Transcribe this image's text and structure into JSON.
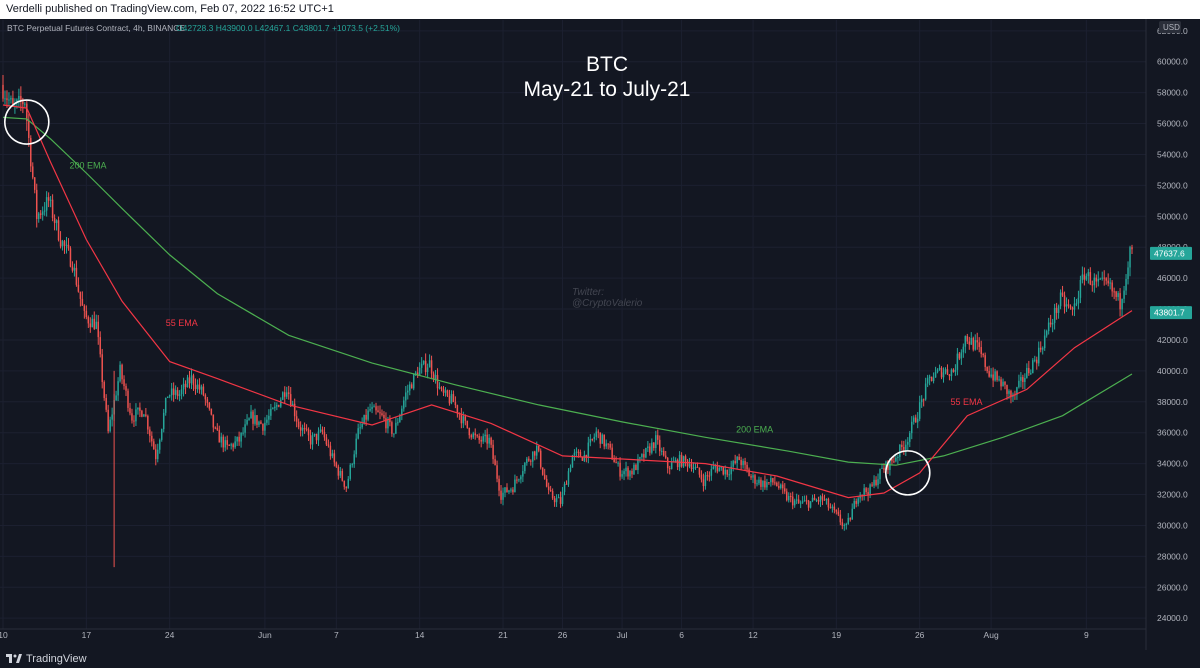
{
  "publish_info": "Verdelli published on TradingView.com, Feb 07, 2022 16:52 UTC+1",
  "brand": "TradingView",
  "colors": {
    "background": "#131722",
    "up": "#26a69a",
    "down": "#ef5350",
    "ema55": "#f23645",
    "ema200": "#4caf50",
    "text": "#b2b5be"
  },
  "chart_data": {
    "type": "candlestick",
    "symbol_header": "BTC Perpetual Futures Contract, 4h, BINANCE",
    "ohlc_readout": {
      "open": "O42728.3",
      "high": "H43900.0",
      "low": "L42467.1",
      "close": "C43801.7",
      "change": "+1073.5 (+2.51%)"
    },
    "title_lines": [
      "BTC",
      "May-21 to July-21"
    ],
    "watermark_lines": [
      "Twitter:",
      "@CryptoValerio"
    ],
    "currency": "USD",
    "y_ticks": [
      24000,
      26000,
      28000,
      30000,
      32000,
      34000,
      36000,
      38000,
      40000,
      42000,
      44000,
      46000,
      48000,
      50000,
      52000,
      54000,
      56000,
      58000,
      60000,
      62000
    ],
    "y_tick_labels": [
      "24000.0",
      "26000.0",
      "28000.0",
      "30000.0",
      "32000.0",
      "34000.0",
      "36000.0",
      "38000.0",
      "40000.0",
      "42000.0",
      "44000.0",
      "46000.0",
      "48000.0",
      "50000.0",
      "52000.0",
      "54000.0",
      "56000.0",
      "58000.0",
      "60000.0",
      "62000.0"
    ],
    "ylim": [
      23300,
      62700
    ],
    "x_range": [
      "2021-05-10T00:00",
      "2021-08-12T20:00"
    ],
    "x_ticks": [
      {
        "label": "10",
        "date": "2021-05-10"
      },
      {
        "label": "17",
        "date": "2021-05-17"
      },
      {
        "label": "24",
        "date": "2021-05-24"
      },
      {
        "label": "Jun",
        "date": "2021-06-01"
      },
      {
        "label": "7",
        "date": "2021-06-07"
      },
      {
        "label": "14",
        "date": "2021-06-14"
      },
      {
        "label": "21",
        "date": "2021-06-21"
      },
      {
        "label": "26",
        "date": "2021-06-26"
      },
      {
        "label": "Jul",
        "date": "2021-07-01"
      },
      {
        "label": "6",
        "date": "2021-07-06"
      },
      {
        "label": "12",
        "date": "2021-07-12"
      },
      {
        "label": "19",
        "date": "2021-07-19"
      },
      {
        "label": "26",
        "date": "2021-07-26"
      },
      {
        "label": "Aug",
        "date": "2021-08-01"
      },
      {
        "label": "9",
        "date": "2021-08-09"
      }
    ],
    "price_keypoints": [
      [
        "2021-05-10",
        58500
      ],
      [
        "2021-05-11",
        57000
      ],
      [
        "2021-05-12",
        57500
      ],
      [
        "2021-05-13",
        50000
      ],
      [
        "2021-05-14",
        51000
      ],
      [
        "2021-05-15",
        48500
      ],
      [
        "2021-05-16",
        47000
      ],
      [
        "2021-05-17",
        43500
      ],
      [
        "2021-05-18",
        43000
      ],
      [
        "2021-05-19",
        36000
      ],
      [
        "2021-05-20",
        40000
      ],
      [
        "2021-05-21",
        37000
      ],
      [
        "2021-05-22",
        37500
      ],
      [
        "2021-05-23",
        34500
      ],
      [
        "2021-05-24",
        38500
      ],
      [
        "2021-05-25",
        38500
      ],
      [
        "2021-05-26",
        39500
      ],
      [
        "2021-05-27",
        38500
      ],
      [
        "2021-05-28",
        36000
      ],
      [
        "2021-05-29",
        35000
      ],
      [
        "2021-05-30",
        35500
      ],
      [
        "2021-05-31",
        37000
      ],
      [
        "2021-06-01",
        36500
      ],
      [
        "2021-06-02",
        37500
      ],
      [
        "2021-06-03",
        39000
      ],
      [
        "2021-06-04",
        36500
      ],
      [
        "2021-06-05",
        35500
      ],
      [
        "2021-06-06",
        36000
      ],
      [
        "2021-06-07",
        34000
      ],
      [
        "2021-06-08",
        32500
      ],
      [
        "2021-06-09",
        36000
      ],
      [
        "2021-06-10",
        37500
      ],
      [
        "2021-06-11",
        37000
      ],
      [
        "2021-06-12",
        36000
      ],
      [
        "2021-06-13",
        38500
      ],
      [
        "2021-06-14",
        40000
      ],
      [
        "2021-06-15",
        40500
      ],
      [
        "2021-06-16",
        38500
      ],
      [
        "2021-06-17",
        38000
      ],
      [
        "2021-06-18",
        36500
      ],
      [
        "2021-06-19",
        35500
      ],
      [
        "2021-06-20",
        35500
      ],
      [
        "2021-06-21",
        32000
      ],
      [
        "2021-06-22",
        32500
      ],
      [
        "2021-06-23",
        34000
      ],
      [
        "2021-06-24",
        35000
      ],
      [
        "2021-06-25",
        32000
      ],
      [
        "2021-06-26",
        31500
      ],
      [
        "2021-06-27",
        34500
      ],
      [
        "2021-06-28",
        34500
      ],
      [
        "2021-06-29",
        36000
      ],
      [
        "2021-06-30",
        35000
      ],
      [
        "2021-07-01",
        33500
      ],
      [
        "2021-07-02",
        33500
      ],
      [
        "2021-07-03",
        34500
      ],
      [
        "2021-07-04",
        35500
      ],
      [
        "2021-07-05",
        33800
      ],
      [
        "2021-07-06",
        34200
      ],
      [
        "2021-07-07",
        34000
      ],
      [
        "2021-07-08",
        32900
      ],
      [
        "2021-07-09",
        33800
      ],
      [
        "2021-07-10",
        33500
      ],
      [
        "2021-07-11",
        34300
      ],
      [
        "2021-07-12",
        33100
      ],
      [
        "2021-07-13",
        32700
      ],
      [
        "2021-07-14",
        32800
      ],
      [
        "2021-07-15",
        31800
      ],
      [
        "2021-07-16",
        31400
      ],
      [
        "2021-07-17",
        31500
      ],
      [
        "2021-07-18",
        31700
      ],
      [
        "2021-07-19",
        30800
      ],
      [
        "2021-07-20",
        29800
      ],
      [
        "2021-07-21",
        32100
      ],
      [
        "2021-07-22",
        32300
      ],
      [
        "2021-07-23",
        33600
      ],
      [
        "2021-07-24",
        34300
      ],
      [
        "2021-07-25",
        35400
      ],
      [
        "2021-07-26",
        37300
      ],
      [
        "2021-07-27",
        39500
      ],
      [
        "2021-07-28",
        40000
      ],
      [
        "2021-07-29",
        40000
      ],
      [
        "2021-07-30",
        42200
      ],
      [
        "2021-07-31",
        41500
      ],
      [
        "2021-08-01",
        39900
      ],
      [
        "2021-08-02",
        39200
      ],
      [
        "2021-08-03",
        38200
      ],
      [
        "2021-08-04",
        39700
      ],
      [
        "2021-08-05",
        40900
      ],
      [
        "2021-08-06",
        42800
      ],
      [
        "2021-08-07",
        44600
      ],
      [
        "2021-08-08",
        43800
      ],
      [
        "2021-08-09",
        46300
      ],
      [
        "2021-08-10",
        45600
      ],
      [
        "2021-08-11",
        45500
      ],
      [
        "2021-08-12",
        44400
      ],
      [
        "2021-08-12T20:00",
        47637.6
      ]
    ],
    "ema200_keypoints": [
      [
        "2021-05-10",
        56400
      ],
      [
        "2021-05-12",
        56300
      ],
      [
        "2021-05-14",
        55000
      ],
      [
        "2021-05-17",
        52800
      ],
      [
        "2021-05-20",
        50500
      ],
      [
        "2021-05-24",
        47500
      ],
      [
        "2021-05-28",
        45000
      ],
      [
        "2021-06-03",
        42300
      ],
      [
        "2021-06-10",
        40500
      ],
      [
        "2021-06-17",
        39100
      ],
      [
        "2021-06-24",
        37800
      ],
      [
        "2021-07-01",
        36700
      ],
      [
        "2021-07-08",
        35700
      ],
      [
        "2021-07-15",
        34800
      ],
      [
        "2021-07-20",
        34100
      ],
      [
        "2021-07-24",
        33900
      ],
      [
        "2021-07-28",
        34500
      ],
      [
        "2021-08-02",
        35700
      ],
      [
        "2021-08-07",
        37100
      ],
      [
        "2021-08-12T20:00",
        39800
      ]
    ],
    "ema55_keypoints": [
      [
        "2021-05-10",
        57200
      ],
      [
        "2021-05-12",
        57000
      ],
      [
        "2021-05-14",
        53500
      ],
      [
        "2021-05-17",
        48500
      ],
      [
        "2021-05-20",
        44500
      ],
      [
        "2021-05-24",
        40600
      ],
      [
        "2021-05-28",
        39500
      ],
      [
        "2021-06-03",
        37800
      ],
      [
        "2021-06-10",
        36500
      ],
      [
        "2021-06-15",
        37800
      ],
      [
        "2021-06-20",
        36600
      ],
      [
        "2021-06-26",
        34500
      ],
      [
        "2021-07-01",
        34300
      ],
      [
        "2021-07-08",
        34000
      ],
      [
        "2021-07-14",
        33200
      ],
      [
        "2021-07-20",
        31800
      ],
      [
        "2021-07-23",
        32100
      ],
      [
        "2021-07-26",
        33400
      ],
      [
        "2021-07-30",
        37100
      ],
      [
        "2021-08-04",
        38800
      ],
      [
        "2021-08-08",
        41500
      ],
      [
        "2021-08-12T20:00",
        43900
      ]
    ],
    "labels": [
      {
        "text": "200 EMA",
        "date": "2021-05-15T14:00",
        "price": 53100,
        "color": "ema200"
      },
      {
        "text": "55 EMA",
        "date": "2021-05-23T16:00",
        "price": 42900,
        "color": "ema55"
      },
      {
        "text": "200 EMA",
        "date": "2021-07-10T14:00",
        "price": 36000,
        "color": "ema200"
      },
      {
        "text": "55 EMA",
        "date": "2021-07-28T14:00",
        "price": 37800,
        "color": "ema55"
      }
    ],
    "circles": [
      {
        "date": "2021-05-12T00:00",
        "price": 56100
      },
      {
        "date": "2021-07-25T00:00",
        "price": 33400
      }
    ],
    "price_tags": [
      {
        "text": "47637.6",
        "price": 47637.6
      },
      {
        "text": "43801.7",
        "price": 43801.7
      }
    ]
  }
}
